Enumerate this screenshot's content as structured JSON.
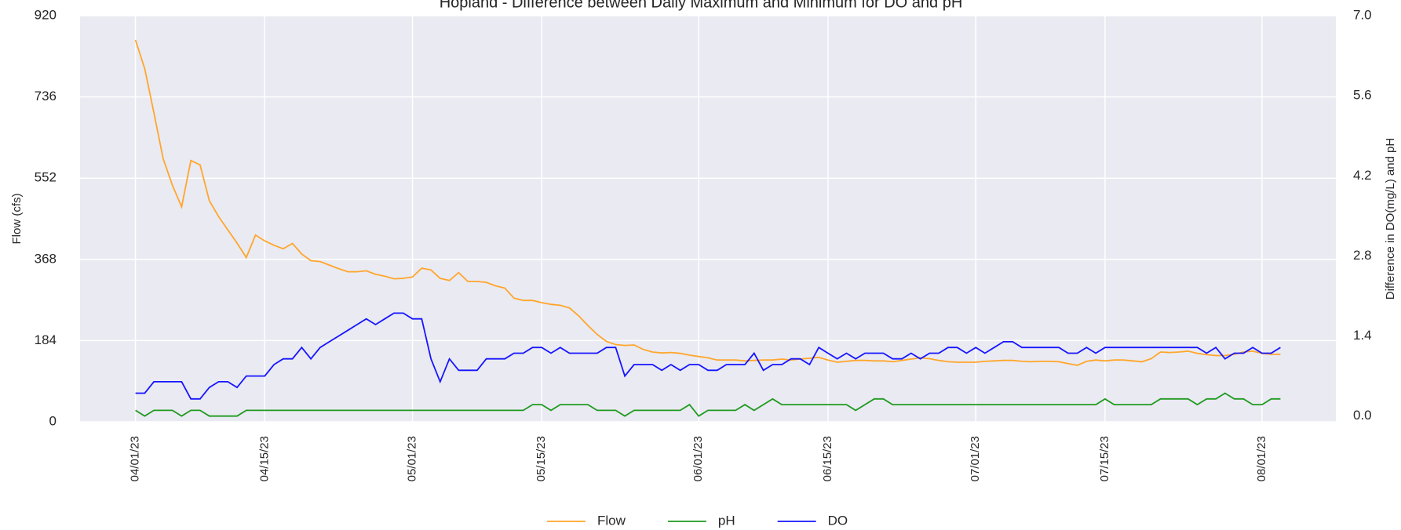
{
  "chart_data": {
    "type": "line",
    "title": "Hopland - Difference between Daily Maximum and Minimum for DO and pH",
    "ylabel": "Flow (cfs)",
    "y2label": "Difference in DO(mg/L) and pH",
    "x": [
      "04/01/23",
      "04/02/23",
      "04/03/23",
      "04/04/23",
      "04/05/23",
      "04/06/23",
      "04/07/23",
      "04/08/23",
      "04/09/23",
      "04/10/23",
      "04/11/23",
      "04/12/23",
      "04/13/23",
      "04/14/23",
      "04/15/23",
      "04/16/23",
      "04/17/23",
      "04/18/23",
      "04/19/23",
      "04/20/23",
      "04/21/23",
      "04/22/23",
      "04/23/23",
      "04/24/23",
      "04/25/23",
      "04/26/23",
      "04/27/23",
      "04/28/23",
      "04/29/23",
      "04/30/23",
      "05/01/23",
      "05/02/23",
      "05/03/23",
      "05/04/23",
      "05/05/23",
      "05/06/23",
      "05/07/23",
      "05/08/23",
      "05/09/23",
      "05/10/23",
      "05/11/23",
      "05/12/23",
      "05/13/23",
      "05/14/23",
      "05/15/23",
      "05/16/23",
      "05/17/23",
      "05/18/23",
      "05/19/23",
      "05/20/23",
      "05/21/23",
      "05/22/23",
      "05/23/23",
      "05/24/23",
      "05/25/23",
      "05/26/23",
      "05/27/23",
      "05/28/23",
      "05/29/23",
      "05/30/23",
      "05/31/23",
      "06/01/23",
      "06/02/23",
      "06/03/23",
      "06/04/23",
      "06/05/23",
      "06/06/23",
      "06/07/23",
      "06/08/23",
      "06/09/23",
      "06/10/23",
      "06/11/23",
      "06/12/23",
      "06/13/23",
      "06/14/23",
      "06/15/23",
      "06/16/23",
      "06/17/23",
      "06/18/23",
      "06/19/23",
      "06/20/23",
      "06/21/23",
      "06/22/23",
      "06/23/23",
      "06/24/23",
      "06/25/23",
      "06/26/23",
      "06/27/23",
      "06/28/23",
      "06/29/23",
      "06/30/23",
      "07/01/23",
      "07/02/23",
      "07/03/23",
      "07/04/23",
      "07/05/23",
      "07/06/23",
      "07/07/23",
      "07/08/23",
      "07/09/23",
      "07/10/23",
      "07/11/23",
      "07/12/23",
      "07/13/23",
      "07/14/23",
      "07/15/23",
      "07/16/23",
      "07/17/23",
      "07/18/23",
      "07/19/23",
      "07/20/23",
      "07/21/23",
      "07/22/23",
      "07/23/23",
      "07/24/23",
      "07/25/23",
      "07/26/23",
      "07/27/23",
      "07/28/23",
      "07/29/23",
      "07/30/23",
      "07/31/23",
      "08/01/23",
      "08/02/23",
      "08/03/23"
    ],
    "series": [
      {
        "name": "Flow",
        "color": "#ffa62b",
        "axis": "y",
        "values": [
          865,
          800,
          700,
          596,
          536,
          487,
          592,
          582,
          501,
          465,
          435,
          405,
          372,
          423,
          410,
          400,
          392,
          404,
          380,
          365,
          363,
          355,
          347,
          340,
          340,
          342,
          334,
          330,
          324,
          325,
          328,
          348,
          344,
          325,
          320,
          338,
          318,
          318,
          316,
          308,
          303,
          280,
          275,
          275,
          270,
          266,
          264,
          258,
          240,
          218,
          198,
          182,
          175,
          173,
          174,
          164,
          158,
          156,
          157,
          155,
          151,
          148,
          145,
          140,
          140,
          140,
          138,
          139,
          140,
          140,
          142,
          140,
          142,
          144,
          146,
          140,
          135,
          137,
          139,
          139,
          138,
          138,
          136,
          139,
          142,
          145,
          143,
          139,
          136,
          135,
          135,
          135,
          137,
          138,
          139,
          139,
          137,
          136,
          137,
          137,
          136,
          132,
          128,
          137,
          140,
          138,
          140,
          140,
          138,
          136,
          143,
          158,
          157,
          158,
          160,
          155,
          152,
          150,
          150,
          153,
          158,
          160,
          155,
          153,
          153
        ]
      },
      {
        "name": "pH",
        "color": "#1f9a1f",
        "axis": "y2",
        "values": [
          0.1,
          0.0,
          0.1,
          0.1,
          0.1,
          0.0,
          0.1,
          0.1,
          0.0,
          0.0,
          0.0,
          0.0,
          0.1,
          0.1,
          0.1,
          0.1,
          0.1,
          0.1,
          0.1,
          0.1,
          0.1,
          0.1,
          0.1,
          0.1,
          0.1,
          0.1,
          0.1,
          0.1,
          0.1,
          0.1,
          0.1,
          0.1,
          0.1,
          0.1,
          0.1,
          0.1,
          0.1,
          0.1,
          0.1,
          0.1,
          0.1,
          0.1,
          0.1,
          0.2,
          0.2,
          0.1,
          0.2,
          0.2,
          0.2,
          0.2,
          0.1,
          0.1,
          0.1,
          0.0,
          0.1,
          0.1,
          0.1,
          0.1,
          0.1,
          0.1,
          0.2,
          0.0,
          0.1,
          0.1,
          0.1,
          0.1,
          0.2,
          0.1,
          0.2,
          0.3,
          0.2,
          0.2,
          0.2,
          0.2,
          0.2,
          0.2,
          0.2,
          0.2,
          0.1,
          0.2,
          0.3,
          0.3,
          0.2,
          0.2,
          0.2,
          0.2,
          0.2,
          0.2,
          0.2,
          0.2,
          0.2,
          0.2,
          0.2,
          0.2,
          0.2,
          0.2,
          0.2,
          0.2,
          0.2,
          0.2,
          0.2,
          0.2,
          0.2,
          0.2,
          0.2,
          0.3,
          0.2,
          0.2,
          0.2,
          0.2,
          0.2,
          0.3,
          0.3,
          0.3,
          0.3,
          0.2,
          0.3,
          0.3,
          0.4,
          0.3,
          0.3,
          0.2,
          0.2,
          0.3,
          0.3
        ]
      },
      {
        "name": "DO",
        "color": "#1515ff",
        "axis": "y2",
        "values": [
          0.4,
          0.4,
          0.6,
          0.6,
          0.6,
          0.6,
          0.3,
          0.3,
          0.5,
          0.6,
          0.6,
          0.5,
          0.7,
          0.7,
          0.7,
          0.9,
          1.0,
          1.0,
          1.2,
          1.0,
          1.2,
          1.3,
          1.4,
          1.5,
          1.6,
          1.7,
          1.6,
          1.7,
          1.8,
          1.8,
          1.7,
          1.7,
          1.0,
          0.6,
          1.0,
          0.8,
          0.8,
          0.8,
          1.0,
          1.0,
          1.0,
          1.1,
          1.1,
          1.2,
          1.2,
          1.1,
          1.2,
          1.1,
          1.1,
          1.1,
          1.1,
          1.2,
          1.2,
          0.7,
          0.9,
          0.9,
          0.9,
          0.8,
          0.9,
          0.8,
          0.9,
          0.9,
          0.8,
          0.8,
          0.9,
          0.9,
          0.9,
          1.1,
          0.8,
          0.9,
          0.9,
          1.0,
          1.0,
          0.9,
          1.2,
          1.1,
          1.0,
          1.1,
          1.0,
          1.1,
          1.1,
          1.1,
          1.0,
          1.0,
          1.1,
          1.0,
          1.1,
          1.1,
          1.2,
          1.2,
          1.1,
          1.2,
          1.1,
          1.2,
          1.3,
          1.3,
          1.2,
          1.2,
          1.2,
          1.2,
          1.2,
          1.1,
          1.1,
          1.2,
          1.1,
          1.2,
          1.2,
          1.2,
          1.2,
          1.2,
          1.2,
          1.2,
          1.2,
          1.2,
          1.2,
          1.2,
          1.1,
          1.2,
          1.0,
          1.1,
          1.1,
          1.2,
          1.1,
          1.1,
          1.2
        ]
      }
    ],
    "xlim": [
      "03/26/23",
      "08/09/23"
    ],
    "xticks": [
      "04/01/23",
      "04/15/23",
      "05/01/23",
      "05/15/23",
      "06/01/23",
      "06/15/23",
      "07/01/23",
      "07/15/23",
      "08/01/23"
    ],
    "ylim": [
      0,
      920
    ],
    "yticks": [
      0,
      184,
      368,
      552,
      736,
      920
    ],
    "y2lim": [
      -0.1,
      7.0
    ],
    "y2ticks": [
      {
        "value": 0,
        "label": "0.0"
      },
      1.4,
      2.8,
      4.2,
      5.6,
      {
        "value": 7,
        "label": "7.0"
      }
    ],
    "grid": true,
    "legend": "bottom"
  }
}
